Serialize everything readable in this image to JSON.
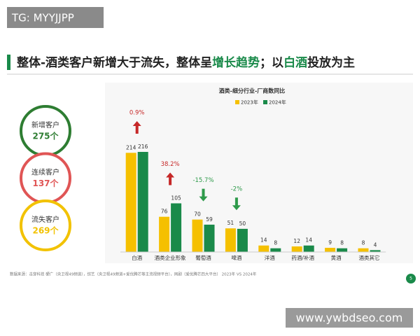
{
  "watermark_top": "TG: MYYJJPP",
  "title": [
    "整体-酒类客户新增大于流失，整体呈",
    "增长趋势",
    "；以",
    "白酒",
    "投放为主"
  ],
  "circles": [
    {
      "label": "新增客户",
      "value": "275个",
      "color": "#2e7d32"
    },
    {
      "label": "连续客户",
      "value": "137个",
      "color": "#e05555"
    },
    {
      "label": "流失客户",
      "value": "269个",
      "color": "#f2c200"
    }
  ],
  "chart_data": {
    "type": "bar",
    "title": "酒类-细分行业-厂商数同比",
    "categories": [
      "白酒",
      "酒类企业形象",
      "葡萄酒",
      "啤酒",
      "洋酒",
      "药酒/补酒",
      "黄酒",
      "酒类其它"
    ],
    "series": [
      {
        "name": "2023年",
        "color": "#f5c000",
        "values": [
          214,
          76,
          70,
          51,
          14,
          12,
          9,
          8
        ]
      },
      {
        "name": "2024年",
        "color": "#1a8a4a",
        "values": [
          216,
          105,
          59,
          50,
          8,
          14,
          8,
          4
        ]
      }
    ],
    "annotations": [
      {
        "text": "0.9%",
        "direction": "up",
        "color": "#c62828"
      },
      {
        "text": "38.2%",
        "direction": "up",
        "color": "#c62828"
      },
      {
        "text": "-15.7%",
        "direction": "down",
        "color": "#2e9a4a"
      },
      {
        "text": "-2%",
        "direction": "down",
        "color": "#2e9a4a"
      }
    ],
    "legend": "top"
  },
  "source": "数据来源：击穿科技 硬广（央卫视49频道），综艺（央卫视49频道+爱优腾芒等主流视频平台），网剧（爱优腾芒四大平台） 2023年 VS 2024年",
  "page_number": "5",
  "watermark_bottom": "www.ywbdseo.com"
}
